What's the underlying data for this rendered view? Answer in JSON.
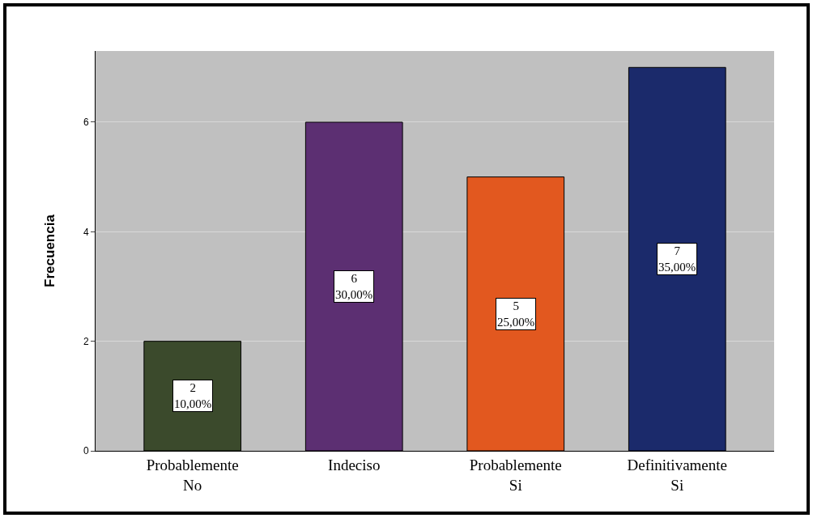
{
  "chart_data": {
    "type": "bar",
    "ylabel": "Frecuencia",
    "categories": [
      "Probablemente No",
      "Indeciso",
      "Probablemente Si",
      "Definitivamente Si"
    ],
    "values": [
      2,
      6,
      5,
      7
    ],
    "colors": [
      "#3b4a2c",
      "#5c2f72",
      "#e2581f",
      "#1b2a6b"
    ],
    "value_labels": [
      "2\n10,00%",
      "6\n30,00%",
      "5\n25,00%",
      "7\n35,00%"
    ],
    "ylim": [
      0,
      7.3
    ],
    "yticks": [
      0,
      2,
      4,
      6
    ],
    "grid": "y"
  }
}
